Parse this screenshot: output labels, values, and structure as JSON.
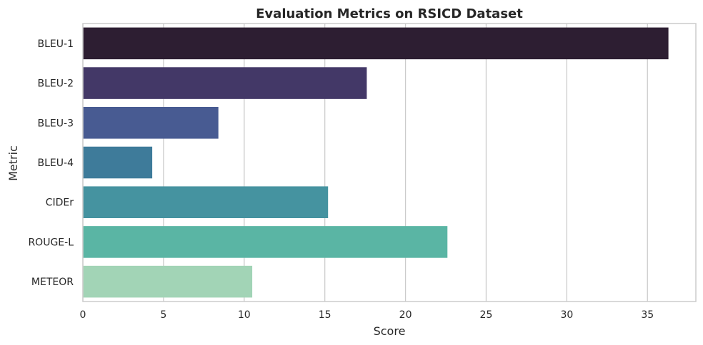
{
  "chart_data": {
    "type": "bar",
    "orientation": "horizontal",
    "title": "Evaluation Metrics on RSICD Dataset",
    "xlabel": "Score",
    "ylabel": "Metric",
    "xlim": [
      0,
      38
    ],
    "xticks": [
      0,
      5,
      10,
      15,
      20,
      25,
      30,
      35
    ],
    "grid": true,
    "categories": [
      "BLEU-1",
      "BLEU-2",
      "BLEU-3",
      "BLEU-4",
      "CIDEr",
      "ROUGE-L",
      "METEOR"
    ],
    "values": [
      36.3,
      17.6,
      8.4,
      4.3,
      15.2,
      22.6,
      10.5
    ],
    "colors": [
      "#2d1e32",
      "#433867",
      "#485b92",
      "#3e7b9a",
      "#4593a0",
      "#5ab5a4",
      "#a2d4b6"
    ]
  }
}
